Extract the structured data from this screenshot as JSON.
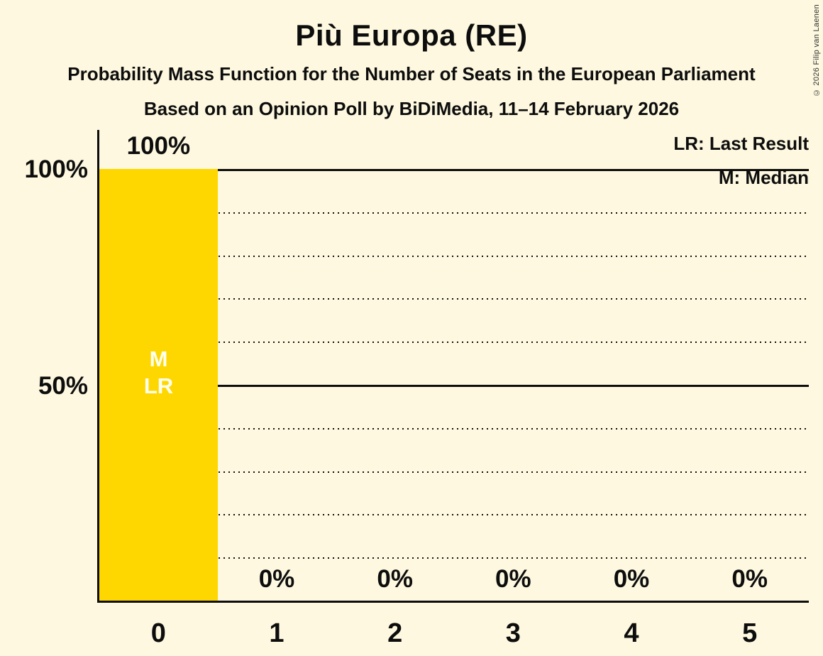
{
  "title": "Più Europa (RE)",
  "subtitle1": "Probability Mass Function for the Number of Seats in the European Parliament",
  "subtitle2": "Based on an Opinion Poll by BiDiMedia, 11–14 February 2026",
  "copyright": "© 2026 Filip van Laenen",
  "legend": {
    "last_result": "LR: Last Result",
    "median": "M: Median"
  },
  "y_axis": {
    "tick_100": "100%",
    "tick_50": "50%"
  },
  "colors": {
    "background": "#FDF8DF",
    "bar": "#FFD700",
    "text": "#0D0D0D",
    "bar_annotation_text": "#FFFFF0"
  },
  "chart_data": {
    "type": "bar",
    "title": "Più Europa (RE)",
    "categories": [
      "0",
      "1",
      "2",
      "3",
      "4",
      "5"
    ],
    "values": [
      100,
      0,
      0,
      0,
      0,
      0
    ],
    "value_labels": [
      "100%",
      "0%",
      "0%",
      "0%",
      "0%",
      "0%"
    ],
    "ylim": [
      0,
      100
    ],
    "ytick_labels": [
      "100%",
      "50%"
    ],
    "gridlines_pct": [
      10,
      20,
      30,
      40,
      50,
      60,
      70,
      80,
      90,
      100
    ],
    "solid_gridlines_pct": [
      50,
      100
    ],
    "grid": true,
    "legend_position": "top-right",
    "median_category": "0",
    "last_result_category": "0",
    "annotations": {
      "median": "M",
      "last_result": "LR"
    }
  }
}
